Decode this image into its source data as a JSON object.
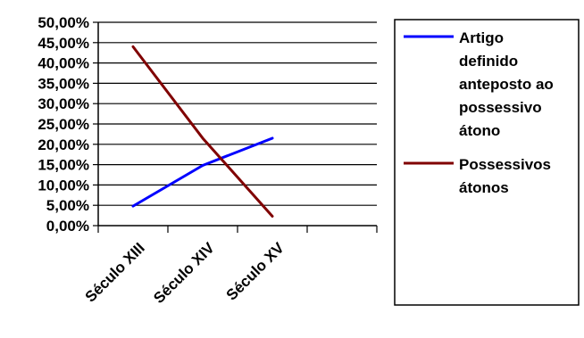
{
  "chart_data": {
    "type": "line",
    "categories": [
      "Século XIII",
      "Século XIV",
      "Século XV"
    ],
    "series": [
      {
        "name": "Artigo definido anteposto ao possessivo átono",
        "name_lines": [
          "Artigo",
          "definido",
          "anteposto ao",
          "possessivo",
          "átono"
        ],
        "color": "#0000ff",
        "values": [
          4.8,
          14.8,
          21.5
        ]
      },
      {
        "name": "Possessivos átonos",
        "name_lines": [
          "Possessivos",
          "átonos"
        ],
        "color": "#800000",
        "values": [
          44.0,
          21.5,
          2.3
        ]
      }
    ],
    "yticks": [
      "0,00%",
      "5,00%",
      "10,00%",
      "15,00%",
      "20,00%",
      "25,00%",
      "30,00%",
      "35,00%",
      "40,00%",
      "45,00%",
      "50,00%"
    ],
    "ylim": [
      0,
      50
    ],
    "grid": true,
    "legend_position": "right",
    "title": "",
    "xlabel": "",
    "ylabel": ""
  }
}
